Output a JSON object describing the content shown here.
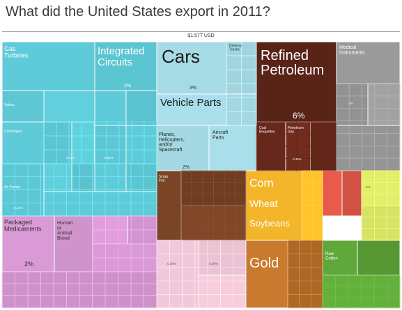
{
  "title": "What did the United States export in 2011?",
  "total": "$1.57T USD",
  "chart_data": {
    "type": "treemap",
    "title": "What did the United States export in 2011?",
    "total": "$1.57T USD",
    "groups": [
      {
        "id": "machinery",
        "color": "#5fcbd8",
        "items": [
          {
            "label": "Gas Turbines",
            "pct": ""
          },
          {
            "label": "Integrated Circuits",
            "pct": "2%"
          },
          {
            "label": "Valves",
            "pct": ""
          },
          {
            "label": "Centrifuges",
            "pct": ""
          },
          {
            "label": "Air Pumps",
            "pct": ""
          }
        ]
      },
      {
        "id": "transportation",
        "color": "#a6dbe6",
        "items": [
          {
            "label": "Cars",
            "pct": "3%"
          },
          {
            "label": "Delivery Trucks",
            "pct": ""
          },
          {
            "label": "Vehicle Parts",
            "pct": ""
          },
          {
            "label": "Planes, Helicopters, and/or Spacecraft",
            "pct": "2%"
          },
          {
            "label": "Aircraft Parts",
            "pct": ""
          }
        ]
      },
      {
        "id": "mineral",
        "color": "#5a2318",
        "items": [
          {
            "label": "Refined Petroleum",
            "pct": "6%"
          },
          {
            "label": "Coal Briquettes",
            "pct": ""
          },
          {
            "label": "Petroleum Gas",
            "pct": ""
          }
        ]
      },
      {
        "id": "instruments",
        "color": "#9a9a9a",
        "items": [
          {
            "label": "Medical Instruments",
            "pct": ""
          }
        ]
      },
      {
        "id": "chemical",
        "color": "#d99ad6",
        "items": [
          {
            "label": "Packaged Medicaments",
            "pct": "2%"
          },
          {
            "label": "Human or Animal Blood",
            "pct": ""
          }
        ]
      },
      {
        "id": "metals",
        "color": "#7a4426",
        "items": [
          {
            "label": "Scrap Iron",
            "pct": ""
          }
        ]
      },
      {
        "id": "plastics",
        "color": "#f2c9d8",
        "items": []
      },
      {
        "id": "vegetable",
        "color": "#f3b52a",
        "items": [
          {
            "label": "Corn",
            "pct": ""
          },
          {
            "label": "Wheat",
            "pct": ""
          },
          {
            "label": "Soybeans",
            "pct": ""
          }
        ]
      },
      {
        "id": "precious",
        "color": "#c97a2e",
        "items": [
          {
            "label": "Gold",
            "pct": ""
          }
        ]
      },
      {
        "id": "textiles",
        "color": "#5fa83a",
        "items": [
          {
            "label": "Raw Cotton",
            "pct": ""
          }
        ]
      },
      {
        "id": "foodstuffs",
        "color": "#e0f06a",
        "items": []
      },
      {
        "id": "animal",
        "color": "#e85a4a",
        "items": []
      }
    ],
    "small_labels": [
      "0.31%",
      "0.37%",
      "0.44%",
      "0.25%",
      "0.29%",
      "0.35%",
      "1%",
      "2%"
    ]
  }
}
